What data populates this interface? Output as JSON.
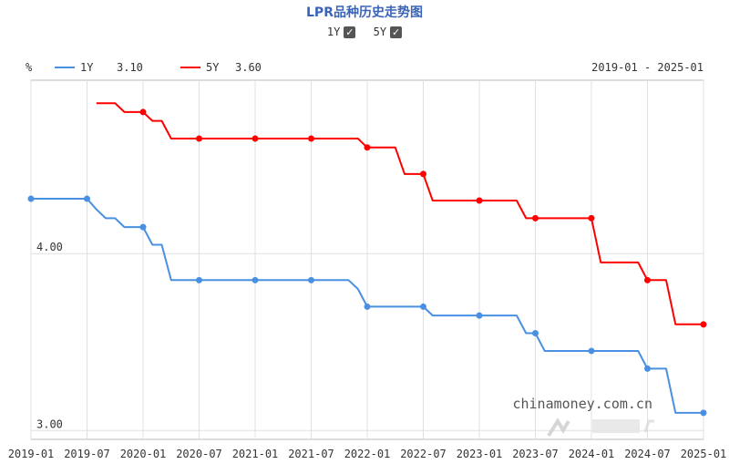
{
  "header": {
    "title": "LPR品种历史走势图",
    "toggles": [
      {
        "label": "1Y",
        "checked": true
      },
      {
        "label": "5Y",
        "checked": true
      }
    ]
  },
  "legend": {
    "unit": "%",
    "items": [
      {
        "name": "1Y",
        "value": "3.10",
        "color": "#4a90e2"
      },
      {
        "name": "5Y",
        "value": "3.60",
        "color": "#ff0000"
      }
    ],
    "range": "2019-01 - 2025-01"
  },
  "watermark": {
    "text": "chinamoney.com.cn",
    "logo": "NCD"
  },
  "chart_data": {
    "type": "line",
    "xlabel": "",
    "ylabel": "%",
    "x_ticks": [
      "2019-01",
      "2019-07",
      "2020-01",
      "2020-07",
      "2021-01",
      "2021-07",
      "2022-01",
      "2022-07",
      "2023-01",
      "2023-07",
      "2024-01",
      "2024-07",
      "2025-01"
    ],
    "y_ticks": [
      "4.00",
      "3.00"
    ],
    "xlim": [
      "2019-01",
      "2025-01"
    ],
    "ylim": [
      2.95,
      4.98
    ],
    "grid": true,
    "series": [
      {
        "name": "1Y",
        "color": "#4a90e2",
        "points": [
          {
            "x": "2019-01",
            "y": 4.31,
            "marker": true
          },
          {
            "x": "2019-07",
            "y": 4.31,
            "marker": true
          },
          {
            "x": "2019-08",
            "y": 4.25
          },
          {
            "x": "2019-09",
            "y": 4.2
          },
          {
            "x": "2019-10",
            "y": 4.2
          },
          {
            "x": "2019-11",
            "y": 4.15
          },
          {
            "x": "2020-01",
            "y": 4.15,
            "marker": true
          },
          {
            "x": "2020-02",
            "y": 4.05
          },
          {
            "x": "2020-03",
            "y": 4.05
          },
          {
            "x": "2020-04",
            "y": 3.85
          },
          {
            "x": "2020-07",
            "y": 3.85,
            "marker": true
          },
          {
            "x": "2021-01",
            "y": 3.85,
            "marker": true
          },
          {
            "x": "2021-07",
            "y": 3.85,
            "marker": true
          },
          {
            "x": "2021-11",
            "y": 3.85
          },
          {
            "x": "2021-12",
            "y": 3.8
          },
          {
            "x": "2022-01",
            "y": 3.7,
            "marker": true
          },
          {
            "x": "2022-07",
            "y": 3.7,
            "marker": true
          },
          {
            "x": "2022-08",
            "y": 3.65
          },
          {
            "x": "2023-01",
            "y": 3.65,
            "marker": true
          },
          {
            "x": "2023-05",
            "y": 3.65
          },
          {
            "x": "2023-06",
            "y": 3.55
          },
          {
            "x": "2023-07",
            "y": 3.55,
            "marker": true
          },
          {
            "x": "2023-08",
            "y": 3.45
          },
          {
            "x": "2024-01",
            "y": 3.45,
            "marker": true
          },
          {
            "x": "2024-06",
            "y": 3.45
          },
          {
            "x": "2024-07",
            "y": 3.35,
            "marker": true
          },
          {
            "x": "2024-09",
            "y": 3.35
          },
          {
            "x": "2024-10",
            "y": 3.1
          },
          {
            "x": "2025-01",
            "y": 3.1,
            "marker": true
          }
        ]
      },
      {
        "name": "5Y",
        "color": "#ff0000",
        "points": [
          {
            "x": "2019-08",
            "y": 4.85
          },
          {
            "x": "2019-10",
            "y": 4.85
          },
          {
            "x": "2019-11",
            "y": 4.8
          },
          {
            "x": "2020-01",
            "y": 4.8,
            "marker": true
          },
          {
            "x": "2020-02",
            "y": 4.75
          },
          {
            "x": "2020-03",
            "y": 4.75
          },
          {
            "x": "2020-04",
            "y": 4.65
          },
          {
            "x": "2020-07",
            "y": 4.65,
            "marker": true
          },
          {
            "x": "2021-01",
            "y": 4.65,
            "marker": true
          },
          {
            "x": "2021-07",
            "y": 4.65,
            "marker": true
          },
          {
            "x": "2021-12",
            "y": 4.65
          },
          {
            "x": "2022-01",
            "y": 4.6,
            "marker": true
          },
          {
            "x": "2022-04",
            "y": 4.6
          },
          {
            "x": "2022-05",
            "y": 4.45
          },
          {
            "x": "2022-07",
            "y": 4.45,
            "marker": true
          },
          {
            "x": "2022-08",
            "y": 4.3
          },
          {
            "x": "2023-01",
            "y": 4.3,
            "marker": true
          },
          {
            "x": "2023-05",
            "y": 4.3
          },
          {
            "x": "2023-06",
            "y": 4.2
          },
          {
            "x": "2023-07",
            "y": 4.2,
            "marker": true
          },
          {
            "x": "2024-01",
            "y": 4.2,
            "marker": true
          },
          {
            "x": "2024-02",
            "y": 3.95
          },
          {
            "x": "2024-06",
            "y": 3.95
          },
          {
            "x": "2024-07",
            "y": 3.85,
            "marker": true
          },
          {
            "x": "2024-09",
            "y": 3.85
          },
          {
            "x": "2024-10",
            "y": 3.6
          },
          {
            "x": "2025-01",
            "y": 3.6,
            "marker": true
          }
        ]
      }
    ]
  }
}
